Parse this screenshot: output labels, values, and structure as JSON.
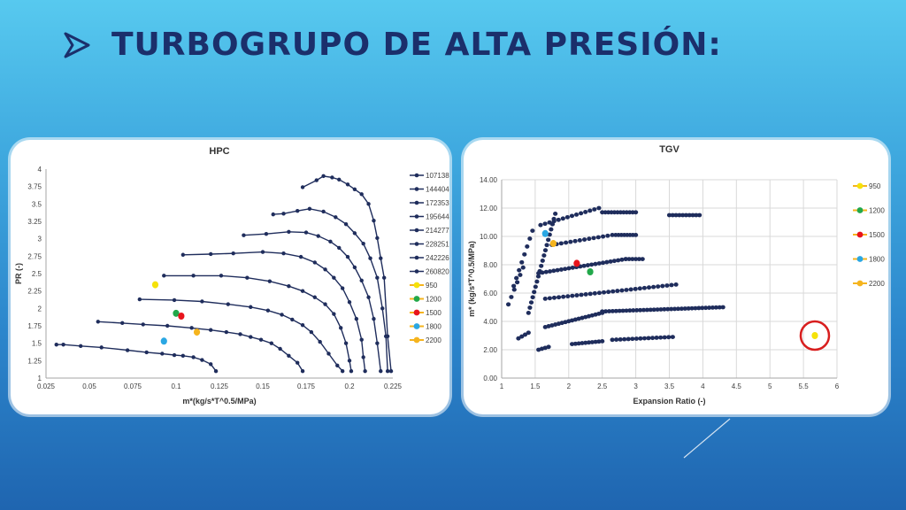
{
  "slide": {
    "title": "TURBOGRUPO DE ALTA PRESIÓN:",
    "bullet_icon": "arrow-bullet-icon",
    "colors": {
      "title": "#1b2f6b",
      "series": "#1f2d5c"
    }
  },
  "chart_data": [
    {
      "type": "line",
      "title": "HPC",
      "xlabel": "m*(kg/s*T^0.5/MPa)",
      "ylabel": "PR (-)",
      "xlim": [
        0.025,
        0.225
      ],
      "ylim": [
        1,
        4
      ],
      "xticks": [
        "0.025",
        "0.05",
        "0.075",
        "0.1",
        "0.125",
        "0.15",
        "0.175",
        "0.2",
        "0.225"
      ],
      "yticks": [
        "1",
        "1.25",
        "1.5",
        "1.75",
        "2",
        "2.25",
        "2.5",
        "2.75",
        "3",
        "3.25",
        "3.5",
        "3.75",
        "4"
      ],
      "legend_position": "right",
      "series": [
        {
          "name": "107138",
          "color": "#1f2d5c",
          "points": [
            [
              0.031,
              1.48
            ],
            [
              0.035,
              1.48
            ],
            [
              0.045,
              1.46
            ],
            [
              0.057,
              1.44
            ],
            [
              0.072,
              1.4
            ],
            [
              0.083,
              1.37
            ],
            [
              0.092,
              1.35
            ],
            [
              0.099,
              1.33
            ],
            [
              0.104,
              1.32
            ],
            [
              0.11,
              1.3
            ],
            [
              0.115,
              1.26
            ],
            [
              0.12,
              1.2
            ],
            [
              0.123,
              1.1
            ]
          ]
        },
        {
          "name": "144404",
          "color": "#1f2d5c",
          "points": [
            [
              0.055,
              1.81
            ],
            [
              0.069,
              1.79
            ],
            [
              0.081,
              1.77
            ],
            [
              0.095,
              1.75
            ],
            [
              0.109,
              1.72
            ],
            [
              0.12,
              1.69
            ],
            [
              0.129,
              1.66
            ],
            [
              0.137,
              1.63
            ],
            [
              0.143,
              1.59
            ],
            [
              0.149,
              1.55
            ],
            [
              0.155,
              1.5
            ],
            [
              0.16,
              1.42
            ],
            [
              0.165,
              1.32
            ],
            [
              0.17,
              1.22
            ],
            [
              0.173,
              1.1
            ]
          ]
        },
        {
          "name": "172353",
          "color": "#1f2d5c",
          "points": [
            [
              0.079,
              2.13
            ],
            [
              0.099,
              2.12
            ],
            [
              0.115,
              2.1
            ],
            [
              0.13,
              2.06
            ],
            [
              0.143,
              2.02
            ],
            [
              0.153,
              1.97
            ],
            [
              0.161,
              1.91
            ],
            [
              0.167,
              1.84
            ],
            [
              0.173,
              1.76
            ],
            [
              0.178,
              1.66
            ],
            [
              0.183,
              1.52
            ],
            [
              0.188,
              1.35
            ],
            [
              0.193,
              1.18
            ],
            [
              0.196,
              1.1
            ]
          ]
        },
        {
          "name": "195644",
          "color": "#1f2d5c",
          "points": [
            [
              0.093,
              2.47
            ],
            [
              0.11,
              2.47
            ],
            [
              0.126,
              2.47
            ],
            [
              0.141,
              2.44
            ],
            [
              0.154,
              2.39
            ],
            [
              0.165,
              2.32
            ],
            [
              0.173,
              2.25
            ],
            [
              0.18,
              2.16
            ],
            [
              0.186,
              2.06
            ],
            [
              0.191,
              1.92
            ],
            [
              0.195,
              1.72
            ],
            [
              0.198,
              1.5
            ],
            [
              0.2,
              1.25
            ],
            [
              0.201,
              1.1
            ]
          ]
        },
        {
          "name": "214277",
          "color": "#1f2d5c",
          "points": [
            [
              0.104,
              2.77
            ],
            [
              0.12,
              2.78
            ],
            [
              0.133,
              2.79
            ],
            [
              0.15,
              2.81
            ],
            [
              0.162,
              2.79
            ],
            [
              0.172,
              2.74
            ],
            [
              0.18,
              2.66
            ],
            [
              0.186,
              2.56
            ],
            [
              0.191,
              2.44
            ],
            [
              0.196,
              2.29
            ],
            [
              0.2,
              2.09
            ],
            [
              0.204,
              1.85
            ],
            [
              0.207,
              1.55
            ],
            [
              0.208,
              1.3
            ],
            [
              0.209,
              1.1
            ]
          ]
        },
        {
          "name": "228251",
          "color": "#1f2d5c",
          "points": [
            [
              0.139,
              3.05
            ],
            [
              0.152,
              3.07
            ],
            [
              0.165,
              3.1
            ],
            [
              0.175,
              3.09
            ],
            [
              0.182,
              3.04
            ],
            [
              0.189,
              2.96
            ],
            [
              0.194,
              2.87
            ],
            [
              0.199,
              2.74
            ],
            [
              0.203,
              2.59
            ],
            [
              0.207,
              2.4
            ],
            [
              0.211,
              2.16
            ],
            [
              0.214,
              1.85
            ],
            [
              0.216,
              1.5
            ],
            [
              0.218,
              1.1
            ]
          ]
        },
        {
          "name": "242226",
          "color": "#1f2d5c",
          "points": [
            [
              0.156,
              3.35
            ],
            [
              0.162,
              3.36
            ],
            [
              0.17,
              3.4
            ],
            [
              0.177,
              3.43
            ],
            [
              0.185,
              3.39
            ],
            [
              0.192,
              3.31
            ],
            [
              0.198,
              3.21
            ],
            [
              0.203,
              3.08
            ],
            [
              0.208,
              2.93
            ],
            [
              0.212,
              2.72
            ],
            [
              0.216,
              2.44
            ],
            [
              0.219,
              2.0
            ],
            [
              0.221,
              1.6
            ],
            [
              0.222,
              1.1
            ]
          ]
        },
        {
          "name": "260820",
          "color": "#1f2d5c",
          "points": [
            [
              0.173,
              3.74
            ],
            [
              0.181,
              3.84
            ],
            [
              0.185,
              3.9
            ],
            [
              0.19,
              3.88
            ],
            [
              0.194,
              3.85
            ],
            [
              0.199,
              3.78
            ],
            [
              0.203,
              3.71
            ],
            [
              0.207,
              3.64
            ],
            [
              0.211,
              3.5
            ],
            [
              0.214,
              3.26
            ],
            [
              0.216,
              3.01
            ],
            [
              0.218,
              2.72
            ],
            [
              0.22,
              2.44
            ],
            [
              0.222,
              1.6
            ],
            [
              0.224,
              1.1
            ]
          ]
        }
      ],
      "markers": [
        {
          "name": "950",
          "color": "#f5e20a",
          "x": 0.088,
          "y": 2.34
        },
        {
          "name": "1200",
          "color": "#22a84a",
          "x": 0.1,
          "y": 1.93
        },
        {
          "name": "1500",
          "color": "#e8141c",
          "x": 0.103,
          "y": 1.89
        },
        {
          "name": "1800",
          "color": "#2aa7e3",
          "x": 0.093,
          "y": 1.53
        },
        {
          "name": "2200",
          "color": "#f5b41e",
          "x": 0.112,
          "y": 1.66
        }
      ]
    },
    {
      "type": "scatter",
      "title": "TGV",
      "xlabel": "Expansion Ratio (-)",
      "ylabel": "m* (kg/s*T^0.5/MPa)",
      "xlim": [
        1,
        6
      ],
      "ylim": [
        0,
        14
      ],
      "xticks": [
        "1",
        "1.5",
        "2",
        "2.5",
        "3",
        "3.5",
        "4",
        "4.5",
        "5",
        "5.5",
        "6"
      ],
      "yticks": [
        "0.00",
        "2.00",
        "4.00",
        "6.00",
        "8.00",
        "10.00",
        "12.00",
        "14.00"
      ],
      "legend_position": "right",
      "point_series": [
        {
          "name": "band-1",
          "x_start": 1.1,
          "x_end": 1.32,
          "y_start": 5.2,
          "y_end": 7.8,
          "count": 6
        },
        {
          "name": "band-2",
          "x_start": 1.18,
          "x_end": 1.46,
          "y_start": 6.5,
          "y_end": 10.4,
          "count": 8
        },
        {
          "name": "band-3",
          "x_start": 1.4,
          "x_end": 1.8,
          "y_start": 4.6,
          "y_end": 11.6,
          "count": 20
        },
        {
          "name": "band-4",
          "x_start": 1.58,
          "x_end": 2.45,
          "y_start": 10.8,
          "y_end": 12.0,
          "count": 14
        },
        {
          "name": "band-5",
          "x_start": 2.5,
          "x_end": 3.0,
          "y_start": 11.7,
          "y_end": 11.7,
          "count": 12
        },
        {
          "name": "band-6",
          "x_start": 3.5,
          "x_end": 3.95,
          "y_start": 11.5,
          "y_end": 11.5,
          "count": 10
        },
        {
          "name": "band-7",
          "x_start": 1.75,
          "x_end": 2.65,
          "y_start": 9.4,
          "y_end": 10.1,
          "count": 14
        },
        {
          "name": "band-8",
          "x_start": 2.7,
          "x_end": 3.0,
          "y_start": 10.1,
          "y_end": 10.1,
          "count": 8
        },
        {
          "name": "band-9",
          "x_start": 1.55,
          "x_end": 2.85,
          "y_start": 7.4,
          "y_end": 8.4,
          "count": 24
        },
        {
          "name": "band-10",
          "x_start": 2.85,
          "x_end": 3.1,
          "y_start": 8.4,
          "y_end": 8.4,
          "count": 6
        },
        {
          "name": "band-11",
          "x_start": 1.65,
          "x_end": 3.6,
          "y_start": 5.6,
          "y_end": 6.6,
          "count": 30
        },
        {
          "name": "band-12",
          "x_start": 2.5,
          "x_end": 4.3,
          "y_start": 4.7,
          "y_end": 5.0,
          "count": 36
        },
        {
          "name": "band-13",
          "x_start": 1.65,
          "x_end": 2.5,
          "y_start": 3.6,
          "y_end": 4.6,
          "count": 18
        },
        {
          "name": "band-14",
          "x_start": 1.25,
          "x_end": 1.4,
          "y_start": 2.8,
          "y_end": 3.2,
          "count": 4
        },
        {
          "name": "band-15",
          "x_start": 1.55,
          "x_end": 1.7,
          "y_start": 2.0,
          "y_end": 2.2,
          "count": 4
        },
        {
          "name": "band-16",
          "x_start": 2.05,
          "x_end": 2.5,
          "y_start": 2.4,
          "y_end": 2.6,
          "count": 10
        },
        {
          "name": "band-17",
          "x_start": 2.65,
          "x_end": 3.55,
          "y_start": 2.7,
          "y_end": 2.9,
          "count": 16
        }
      ],
      "markers": [
        {
          "name": "950",
          "color": "#f5e20a",
          "x": 5.67,
          "y": 3.0
        },
        {
          "name": "1200",
          "color": "#22a84a",
          "x": 2.32,
          "y": 7.5
        },
        {
          "name": "1500",
          "color": "#e8141c",
          "x": 2.12,
          "y": 8.1
        },
        {
          "name": "1800",
          "color": "#2aa7e3",
          "x": 1.65,
          "y": 10.2
        },
        {
          "name": "2200",
          "color": "#f5b41e",
          "x": 1.77,
          "y": 9.5
        }
      ],
      "highlight": {
        "x": 5.67,
        "y": 3.0,
        "color": "#d81e1e"
      }
    }
  ]
}
